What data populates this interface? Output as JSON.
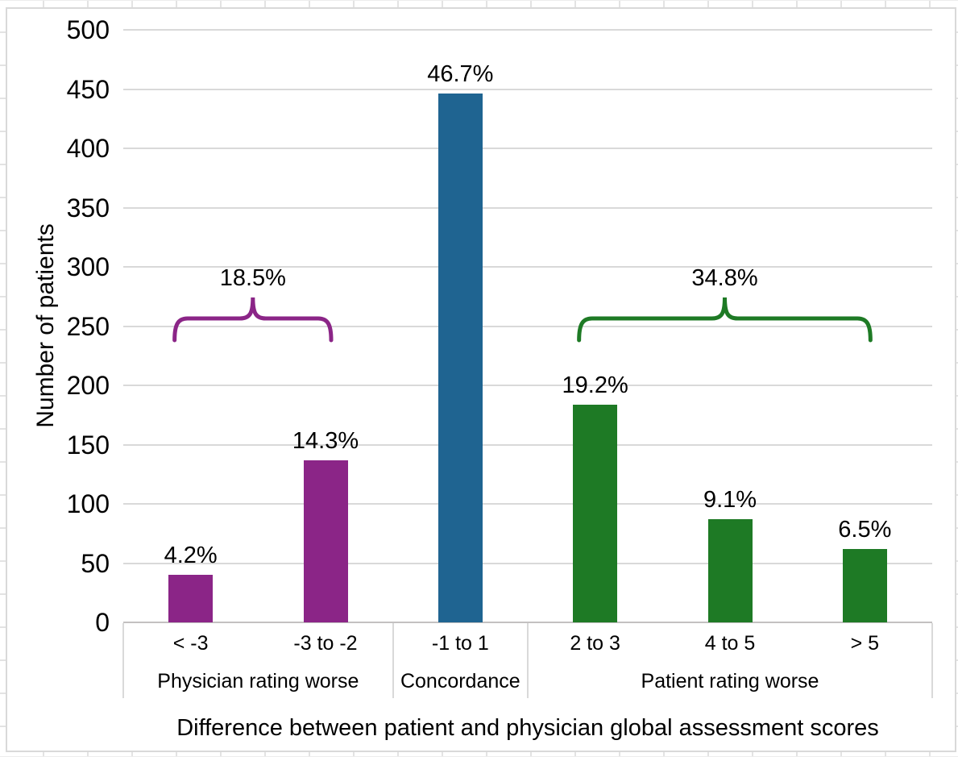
{
  "chart_data": {
    "type": "bar",
    "xlabel": "Difference between patient and physician global assessment scores",
    "ylabel": "Number of patients",
    "ylim": [
      0,
      500
    ],
    "ytick_step": 50,
    "grid": true,
    "legend": false,
    "categories": [
      "< -3",
      "-3 to -2",
      "-1 to 1",
      "2 to 3",
      "4 to 5",
      "> 5"
    ],
    "series": [
      {
        "name": "Number of patients",
        "values": [
          40,
          137,
          446,
          184,
          87,
          62
        ],
        "labels": [
          "4.2%",
          "14.3%",
          "46.7%",
          "19.2%",
          "9.1%",
          "6.5%"
        ],
        "colors": [
          "#8B2587",
          "#8B2587",
          "#1F6491",
          "#1E7A25",
          "#1E7A25",
          "#1E7A25"
        ]
      }
    ],
    "axis_groups": [
      {
        "label": "Physician rating worse",
        "start": 0,
        "end": 1
      },
      {
        "label": "Concordance",
        "start": 2,
        "end": 2
      },
      {
        "label": "Patient rating worse",
        "start": 3,
        "end": 5
      }
    ],
    "braces": [
      {
        "label": "18.5%",
        "start": 0,
        "end": 1,
        "color": "#8B2587"
      },
      {
        "label": "34.8%",
        "start": 3,
        "end": 5,
        "color": "#1E7A25"
      }
    ]
  },
  "colors": {
    "physician_purple": "#8B2587",
    "concordance_blue": "#1F6491",
    "patient_green": "#1E7A25",
    "gridline": "#D9D9D9",
    "axis_line": "#C3C1C1",
    "chart_border": "#D9D9D9",
    "text": "#000000"
  }
}
